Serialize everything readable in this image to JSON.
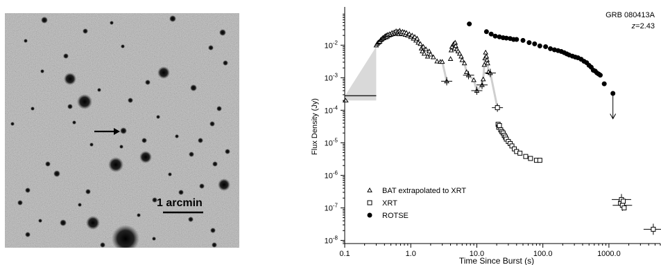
{
  "image_panel": {
    "scale_bar_label": "1 arcmin"
  },
  "chart_data": {
    "type": "scatter",
    "title": "GRB 080413A",
    "subtitle_prefix": "z",
    "subtitle_value": "=2.43",
    "xlabel": "Time Since Burst (s)",
    "ylabel": "Flux Density (Jy)",
    "x_scale": "log",
    "y_scale": "log",
    "xlim": [
      0.1,
      6000
    ],
    "ylim": [
      8e-09,
      0.15
    ],
    "x_ticks": [
      {
        "value": 0.1,
        "label": "0.1"
      },
      {
        "value": 1,
        "label": "1.0"
      },
      {
        "value": 10,
        "label": "10.0"
      },
      {
        "value": 100,
        "label": "100.0"
      },
      {
        "value": 1000,
        "label": "1000.0"
      }
    ],
    "y_ticks": [
      {
        "value": 0.01,
        "base": "10",
        "exp": "-2"
      },
      {
        "value": 0.001,
        "base": "10",
        "exp": "-3"
      },
      {
        "value": 0.0001,
        "base": "10",
        "exp": "-4"
      },
      {
        "value": 1e-05,
        "base": "10",
        "exp": "-5"
      },
      {
        "value": 1e-06,
        "base": "10",
        "exp": "-6"
      },
      {
        "value": 1e-07,
        "base": "10",
        "exp": "-7"
      },
      {
        "value": 1e-08,
        "base": "10",
        "exp": "-8"
      }
    ],
    "legend_position": "bottom-left",
    "legend": [
      {
        "marker": "triangle",
        "label": "BAT extrapolated to XRT"
      },
      {
        "marker": "square",
        "label": "XRT"
      },
      {
        "marker": "circle",
        "label": "ROTSE"
      }
    ],
    "shaded_band": {
      "color": "#d9d9d9",
      "polygon": [
        [
          0.1,
          0.00027
        ],
        [
          0.3,
          0.009
        ],
        [
          0.3,
          0.0002
        ],
        [
          0.1,
          0.0002
        ]
      ]
    },
    "bat_initial_limit": {
      "x": [
        0.1,
        0.3
      ],
      "y": 0.00028
    },
    "series": [
      {
        "name": "BAT extrapolated to XRT",
        "marker": "triangle",
        "points": [
          [
            0.3,
            0.0099
          ],
          [
            0.31,
            0.011
          ],
          [
            0.32,
            0.012
          ],
          [
            0.33,
            0.0125
          ],
          [
            0.34,
            0.013
          ],
          [
            0.35,
            0.0145
          ],
          [
            0.36,
            0.015
          ],
          [
            0.37,
            0.016
          ],
          [
            0.38,
            0.017
          ],
          [
            0.39,
            0.0165
          ],
          [
            0.4,
            0.018
          ],
          [
            0.41,
            0.019
          ],
          [
            0.42,
            0.0175
          ],
          [
            0.43,
            0.02
          ],
          [
            0.44,
            0.0185
          ],
          [
            0.45,
            0.021
          ],
          [
            0.47,
            0.02
          ],
          [
            0.48,
            0.022
          ],
          [
            0.5,
            0.021
          ],
          [
            0.52,
            0.024
          ],
          [
            0.54,
            0.022
          ],
          [
            0.56,
            0.025
          ],
          [
            0.58,
            0.023
          ],
          [
            0.6,
            0.027
          ],
          [
            0.62,
            0.024
          ],
          [
            0.64,
            0.026
          ],
          [
            0.66,
            0.022
          ],
          [
            0.68,
            0.028
          ],
          [
            0.7,
            0.025
          ],
          [
            0.72,
            0.023
          ],
          [
            0.75,
            0.026
          ],
          [
            0.78,
            0.022
          ],
          [
            0.8,
            0.025
          ],
          [
            0.83,
            0.021
          ],
          [
            0.86,
            0.024
          ],
          [
            0.9,
            0.02
          ],
          [
            0.95,
            0.022
          ],
          [
            1.0,
            0.018
          ],
          [
            1.05,
            0.02
          ],
          [
            1.1,
            0.016
          ],
          [
            1.15,
            0.018
          ],
          [
            1.2,
            0.014
          ],
          [
            1.25,
            0.016
          ],
          [
            1.3,
            0.012
          ],
          [
            1.4,
            0.011
          ],
          [
            1.45,
            0.008
          ],
          [
            1.5,
            0.0065
          ],
          [
            1.55,
            0.009
          ],
          [
            1.6,
            0.0055
          ],
          [
            1.7,
            0.0075
          ],
          [
            1.8,
            0.0045
          ],
          [
            1.9,
            0.0065
          ],
          [
            2.0,
            0.0052
          ],
          [
            2.2,
            0.0043
          ],
          [
            2.5,
            0.0032
          ],
          [
            2.8,
            0.0031
          ],
          [
            3.0,
            0.0031
          ],
          [
            3.5,
            0.00078
          ],
          [
            4.0,
            0.0038
          ],
          [
            4.1,
            0.007
          ],
          [
            4.2,
            0.009
          ],
          [
            4.4,
            0.0105
          ],
          [
            4.5,
            0.011
          ],
          [
            4.6,
            0.008
          ],
          [
            4.7,
            0.012
          ],
          [
            4.8,
            0.0095
          ],
          [
            5.0,
            0.0075
          ],
          [
            5.2,
            0.0065
          ],
          [
            5.5,
            0.0055
          ],
          [
            5.8,
            0.0045
          ],
          [
            6.0,
            0.0035
          ],
          [
            6.5,
            0.0028
          ],
          [
            7.0,
            0.0015
          ],
          [
            7.5,
            0.0012
          ],
          [
            9.0,
            0.00085
          ],
          [
            10.0,
            0.0004
          ],
          [
            12.0,
            0.0006
          ],
          [
            12.5,
            0.0009
          ],
          [
            13.0,
            0.0025
          ],
          [
            13.3,
            0.004
          ],
          [
            13.6,
            0.006
          ],
          [
            14.0,
            0.0045
          ],
          [
            14.3,
            0.0035
          ],
          [
            14.6,
            0.0028
          ],
          [
            15.0,
            0.0015
          ],
          [
            16.0,
            0.0014
          ]
        ]
      },
      {
        "name": "XRT",
        "marker": "square",
        "points": [
          [
            20.5,
            0.00012
          ],
          [
            21,
            3.7e-05
          ],
          [
            21.5,
            3e-05
          ],
          [
            22,
            3.4e-05
          ],
          [
            23,
            2.5e-05
          ],
          [
            24,
            2.2e-05
          ],
          [
            25,
            2e-05
          ],
          [
            26,
            1.7e-05
          ],
          [
            27,
            1.5e-05
          ],
          [
            28,
            1.3e-05
          ],
          [
            30,
            1.1e-05
          ],
          [
            32,
            9.5e-06
          ],
          [
            34,
            8e-06
          ],
          [
            37,
            6.5e-06
          ],
          [
            40,
            5.4e-06
          ],
          [
            45,
            4.8e-06
          ],
          [
            55,
            3.8e-06
          ],
          [
            65,
            3.3e-06
          ],
          [
            80,
            2.9e-06
          ],
          [
            90,
            2.9e-06
          ],
          [
            1500,
            1.4e-07
          ],
          [
            1550,
            1.8e-07
          ],
          [
            1600,
            1.2e-07
          ],
          [
            1650,
            1.6e-07
          ],
          [
            1700,
            1e-07
          ],
          [
            4700,
            2.2e-08
          ]
        ]
      },
      {
        "name": "ROTSE",
        "marker": "circle",
        "points": [
          [
            7.7,
            0.045
          ],
          [
            14.0,
            0.026
          ],
          [
            16.5,
            0.022
          ],
          [
            19,
            0.019
          ],
          [
            22,
            0.018
          ],
          [
            25,
            0.017
          ],
          [
            28,
            0.0165
          ],
          [
            32,
            0.016
          ],
          [
            36,
            0.015
          ],
          [
            40,
            0.015
          ],
          [
            50,
            0.014
          ],
          [
            62,
            0.012
          ],
          [
            75,
            0.011
          ],
          [
            90,
            0.0095
          ],
          [
            110,
            0.009
          ],
          [
            130,
            0.0078
          ],
          [
            150,
            0.0072
          ],
          [
            170,
            0.0068
          ],
          [
            190,
            0.0064
          ],
          [
            210,
            0.0059
          ],
          [
            230,
            0.0054
          ],
          [
            250,
            0.005
          ],
          [
            280,
            0.0046
          ],
          [
            310,
            0.0043
          ],
          [
            340,
            0.0041
          ],
          [
            380,
            0.0037
          ],
          [
            420,
            0.0032
          ],
          [
            460,
            0.0029
          ],
          [
            500,
            0.0024
          ],
          [
            540,
            0.0021
          ],
          [
            580,
            0.0017
          ],
          [
            620,
            0.0016
          ],
          [
            660,
            0.0014
          ],
          [
            700,
            0.0013
          ],
          [
            740,
            0.0012
          ],
          [
            850,
            0.00065
          ],
          [
            1150,
            0.00033
          ]
        ]
      }
    ],
    "upper_limit": {
      "x": 1150,
      "y": 0.00033,
      "y_end": 5.5e-05
    }
  }
}
